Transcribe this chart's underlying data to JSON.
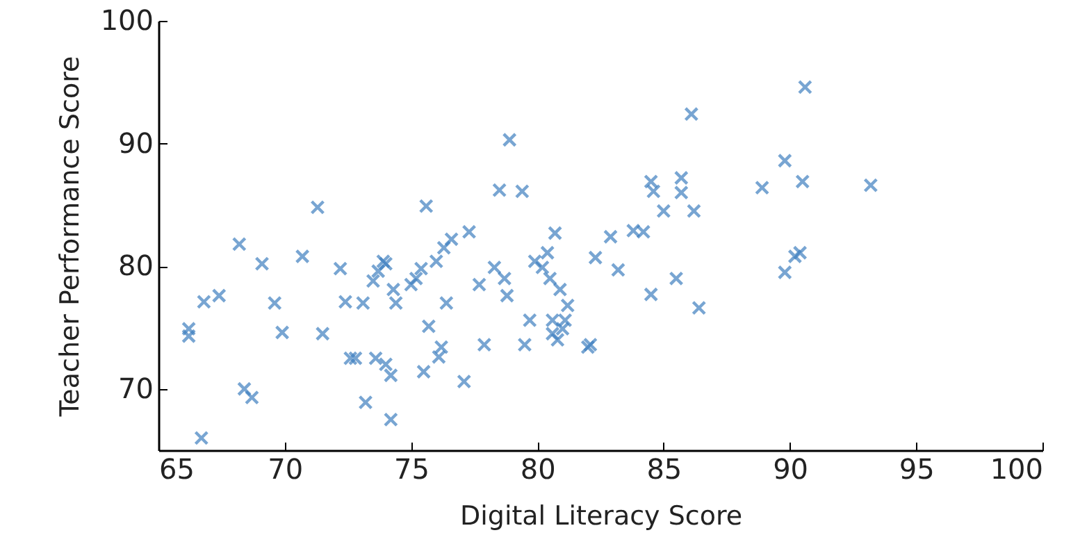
{
  "chart_data": {
    "type": "scatter",
    "xlabel": "Digital Literacy Score",
    "ylabel": "Teacher Performance Score",
    "xlim": [
      65,
      100
    ],
    "xticks": [
      65,
      70,
      75,
      80,
      85,
      90,
      95,
      100
    ],
    "ylim": [
      65,
      100
    ],
    "yticks": [
      70,
      80,
      90,
      100
    ],
    "grid": false,
    "marker": "cross",
    "series": [
      {
        "color": "#3f80c0",
        "x": [
          66.2,
          66.2,
          66.7,
          66.8,
          67.4,
          68.2,
          68.4,
          68.7,
          69.1,
          69.6,
          69.9,
          70.7,
          71.3,
          71.5,
          72.2,
          72.4,
          72.6,
          72.8,
          73.2,
          73.1,
          73.5,
          73.7,
          73.9,
          73.6,
          74.0,
          74.2,
          74.2,
          74.0,
          74.3,
          74.4,
          75.0,
          75.2,
          75.4,
          75.5,
          75.6,
          75.7,
          76.0,
          76.1,
          76.2,
          76.3,
          76.4,
          76.6,
          77.1,
          77.3,
          77.7,
          77.9,
          78.3,
          78.5,
          78.7,
          78.8,
          78.9,
          79.4,
          79.5,
          79.7,
          79.9,
          80.2,
          80.4,
          80.5,
          80.6,
          80.6,
          80.7,
          80.8,
          80.9,
          81.0,
          81.1,
          81.2,
          82.0,
          82.1,
          82.3,
          82.9,
          83.2,
          83.8,
          84.2,
          84.5,
          84.6,
          84.5,
          85.0,
          85.5,
          85.7,
          85.7,
          86.1,
          86.2,
          86.4,
          88.9,
          89.8,
          89.8,
          90.2,
          90.4,
          90.5,
          90.6,
          93.2
        ],
        "values": [
          74.9,
          74.3,
          66.0,
          77.1,
          77.6,
          81.8,
          70.0,
          69.3,
          80.2,
          77.0,
          74.6,
          80.8,
          84.8,
          74.5,
          79.8,
          77.1,
          72.5,
          72.5,
          68.9,
          77.0,
          78.8,
          79.6,
          80.4,
          72.5,
          72.0,
          71.1,
          67.5,
          80.2,
          78.1,
          77.0,
          78.5,
          79.0,
          79.8,
          71.4,
          84.9,
          75.1,
          80.4,
          72.6,
          73.4,
          81.5,
          77.0,
          82.2,
          70.6,
          82.8,
          78.5,
          73.6,
          79.9,
          86.2,
          79.0,
          77.6,
          90.3,
          86.1,
          73.6,
          75.6,
          80.4,
          79.9,
          81.1,
          79.0,
          74.5,
          75.6,
          82.7,
          74.0,
          78.1,
          74.9,
          75.6,
          76.8,
          73.4,
          73.6,
          80.7,
          82.4,
          79.7,
          82.9,
          82.8,
          86.9,
          86.1,
          77.7,
          84.5,
          79.0,
          87.2,
          86.0,
          92.4,
          84.5,
          76.6,
          86.4,
          88.6,
          79.5,
          80.8,
          81.1,
          86.9,
          94.6,
          86.6
        ]
      }
    ]
  }
}
